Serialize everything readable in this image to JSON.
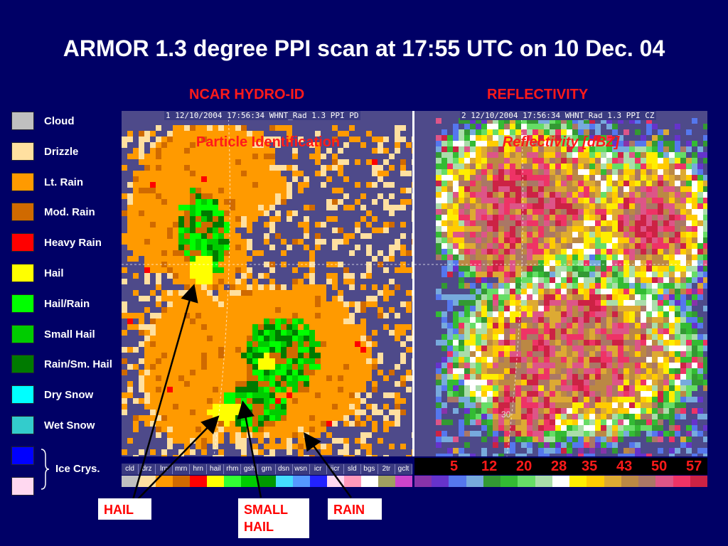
{
  "title": "ARMOR 1.3 degree PPI scan at 17:55 UTC on 10 Dec. 04",
  "panels": {
    "left": {
      "heading": "NCAR HYDRO-ID",
      "header_text": "1 12/10/2004 17:56:34 WHNT_Rad 1.3 PPI PD",
      "inner_title": "Particle Identification"
    },
    "right": {
      "heading": "REFLECTIVITY",
      "header_text": "2 12/10/2004 17:56:34 WHNT_Rad 1.3 PPI CZ",
      "inner_title": "Reflectivity [dBZ]",
      "range_label": "30"
    }
  },
  "legend": [
    {
      "label": "Cloud",
      "color": "#c0c0c0"
    },
    {
      "label": "Drizzle",
      "color": "#ffe0a0"
    },
    {
      "label": "Lt. Rain",
      "color": "#ff9a00"
    },
    {
      "label": "Mod. Rain",
      "color": "#d06a00"
    },
    {
      "label": "Heavy Rain",
      "color": "#ff0000"
    },
    {
      "label": "Hail",
      "color": "#ffff00"
    },
    {
      "label": "Hail/Rain",
      "color": "#00ff00"
    },
    {
      "label": "Small Hail",
      "color": "#00cc00"
    },
    {
      "label": "Rain/Sm. Hail",
      "color": "#007a00"
    },
    {
      "label": "Dry Snow",
      "color": "#00ffff"
    },
    {
      "label": "Wet Snow",
      "color": "#33cccc"
    },
    {
      "label": "",
      "color": "#0000ff"
    },
    {
      "label": "",
      "color": "#ffd8f0"
    }
  ],
  "ice_label": "Ice Crys.",
  "category_strip": [
    "cld",
    "drz",
    "lrn",
    "mrn",
    "hrn",
    "hail",
    "rhm",
    "gsh",
    "grn",
    "dsn",
    "wsn",
    "icr",
    "iicr",
    "sld",
    "bgs",
    "2tr",
    "gclt"
  ],
  "category_colors": [
    "#c0c0c0",
    "#ffe0a0",
    "#ff9a00",
    "#d06a00",
    "#ff0000",
    "#ffff00",
    "#33ff33",
    "#00cc00",
    "#009900",
    "#44ddff",
    "#5599ff",
    "#2222ff",
    "#ffd8f0",
    "#ff99bb",
    "#ffffff",
    "#a0a060",
    "#cc44cc"
  ],
  "dbz_labels": [
    "5",
    "12",
    "20",
    "28",
    "35",
    "43",
    "50",
    "57"
  ],
  "dbz_colors": [
    "#8833aa",
    "#6633cc",
    "#5577ee",
    "#77aadd",
    "#339933",
    "#33bb33",
    "#66dd66",
    "#aaddaa",
    "#ffffff",
    "#ffee00",
    "#ffcc00",
    "#ddaa33",
    "#bb8844",
    "#aa7766",
    "#dd5588",
    "#ee3366",
    "#cc2244"
  ],
  "callouts": {
    "hail": "HAIL",
    "small_hail": "SMALL HAIL",
    "rain": "RAIN"
  },
  "colors": {
    "background": "#000066",
    "title_text": "#ffffff",
    "panel_heading": "#ff1a1a",
    "radar_background": "#4e4a8a"
  }
}
